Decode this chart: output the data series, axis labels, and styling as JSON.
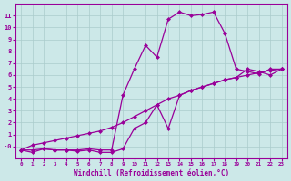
{
  "line1_x": [
    0,
    1,
    2,
    3,
    4,
    5,
    6,
    7,
    8,
    9,
    10,
    11,
    12,
    13,
    14,
    15,
    16,
    17,
    18,
    19,
    20,
    21,
    22,
    23
  ],
  "line1_y": [
    -0.3,
    -0.3,
    -0.2,
    -0.3,
    -0.3,
    -0.3,
    -0.2,
    -0.3,
    -0.3,
    4.3,
    6.5,
    8.5,
    7.5,
    10.7,
    11.3,
    11.0,
    11.1,
    11.3,
    9.5,
    6.5,
    6.3,
    6.1,
    6.5,
    6.5
  ],
  "line2_x": [
    0,
    1,
    2,
    3,
    4,
    5,
    6,
    7,
    8,
    9,
    10,
    11,
    12,
    13,
    14,
    15,
    16,
    17,
    18,
    19,
    20,
    21,
    22,
    23
  ],
  "line2_y": [
    -0.3,
    0.1,
    0.3,
    0.5,
    0.7,
    0.9,
    1.1,
    1.3,
    1.6,
    2.0,
    2.5,
    3.0,
    3.5,
    4.0,
    4.3,
    4.7,
    5.0,
    5.3,
    5.6,
    5.8,
    6.0,
    6.2,
    6.4,
    6.5
  ],
  "line3_x": [
    0,
    1,
    2,
    3,
    4,
    5,
    6,
    7,
    8,
    9,
    10,
    11,
    12,
    13,
    14,
    15,
    16,
    17,
    18,
    19,
    20,
    21,
    22,
    23
  ],
  "line3_y": [
    -0.3,
    -0.5,
    -0.2,
    -0.3,
    -0.3,
    -0.4,
    -0.3,
    -0.5,
    -0.5,
    -0.2,
    1.5,
    2.0,
    3.5,
    1.5,
    4.3,
    4.7,
    5.0,
    5.3,
    5.6,
    5.8,
    6.5,
    6.3,
    6.0,
    6.5
  ],
  "line_color": "#990099",
  "bg_color": "#cce8e8",
  "grid_color": "#aacccc",
  "xlabel": "Windchill (Refroidissement éolien,°C)",
  "xlim": [
    -0.5,
    23.5
  ],
  "ylim": [
    -1.0,
    12.0
  ],
  "xticks": [
    0,
    1,
    2,
    3,
    4,
    5,
    6,
    7,
    8,
    9,
    10,
    11,
    12,
    13,
    14,
    15,
    16,
    17,
    18,
    19,
    20,
    21,
    22,
    23
  ],
  "yticks": [
    0,
    1,
    2,
    3,
    4,
    5,
    6,
    7,
    8,
    9,
    10,
    11
  ],
  "ytick_labels": [
    "-0",
    "1",
    "2",
    "3",
    "4",
    "5",
    "6",
    "7",
    "8",
    "9",
    "10",
    "11"
  ]
}
